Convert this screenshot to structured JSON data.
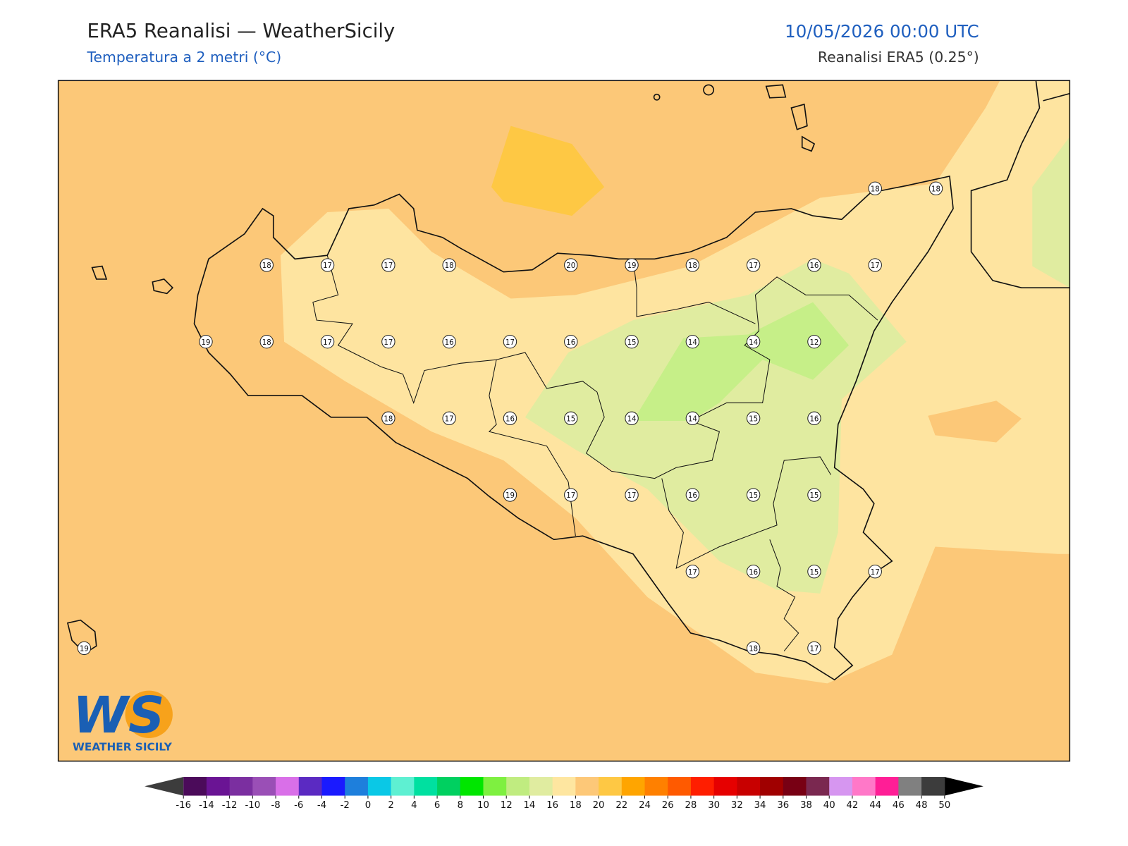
{
  "header": {
    "title": "ERA5 Reanalisi — WeatherSicily",
    "subtitle": "Temperatura a 2 metri (°C)",
    "datetime": "10/05/2026 00:00 UTC",
    "source": "Reanalisi ERA5 (0.25°)"
  },
  "grid": {
    "rows": [
      [
        null,
        null,
        null,
        null,
        null,
        null,
        null,
        null,
        null,
        null,
        null,
        null,
        null,
        18,
        18
      ],
      [
        null,
        null,
        null,
        18,
        17,
        17,
        18,
        null,
        20,
        19,
        18,
        17,
        16,
        17,
        null
      ],
      [
        null,
        null,
        19,
        18,
        17,
        17,
        16,
        17,
        16,
        15,
        14,
        14,
        12,
        null,
        null
      ],
      [
        null,
        null,
        null,
        null,
        null,
        18,
        17,
        16,
        15,
        14,
        14,
        15,
        16,
        null,
        null
      ],
      [
        null,
        null,
        null,
        null,
        null,
        null,
        null,
        19,
        17,
        17,
        16,
        15,
        15,
        null,
        null
      ],
      [
        null,
        null,
        null,
        null,
        null,
        null,
        null,
        null,
        null,
        null,
        17,
        16,
        15,
        17,
        null
      ],
      [
        19,
        null,
        null,
        null,
        null,
        null,
        null,
        null,
        null,
        null,
        null,
        18,
        17,
        null,
        null
      ]
    ]
  },
  "colorbar": {
    "ticks": [
      -16,
      -14,
      -12,
      -10,
      -8,
      -6,
      -4,
      -2,
      0,
      2,
      4,
      6,
      8,
      10,
      12,
      14,
      16,
      18,
      20,
      22,
      24,
      26,
      28,
      30,
      32,
      34,
      36,
      38,
      40,
      42,
      44,
      46,
      48,
      50
    ],
    "colors": [
      "#4b0b5a",
      "#6a1494",
      "#7b2fa0",
      "#9a4fb6",
      "#d96fe8",
      "#5b2ac2",
      "#1a1aff",
      "#1e7fdc",
      "#0ac8e6",
      "#5ef0d2",
      "#00e0a0",
      "#00d060",
      "#00e600",
      "#7ef040",
      "#c0ec80",
      "#e0eca0",
      "#fee6a0",
      "#fdc878",
      "#fec844",
      "#ffa500",
      "#ff8000",
      "#ff5a00",
      "#ff1e00",
      "#e60000",
      "#c80000",
      "#a00000",
      "#780014",
      "#7a2850",
      "#d696f0",
      "#ff78c8",
      "#ff1e96",
      "#808080",
      "#3c3c3c"
    ]
  },
  "logo": {
    "mark": "WS",
    "name": "WEATHER SICILY"
  }
}
